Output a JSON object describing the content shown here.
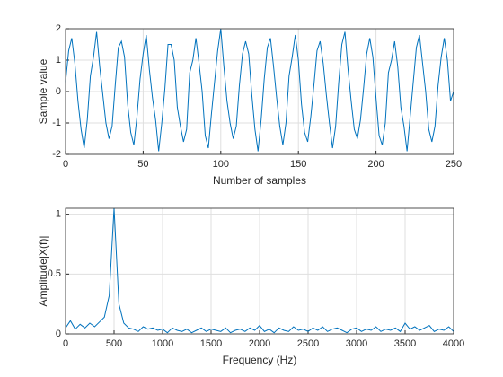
{
  "chart_data": [
    {
      "type": "line",
      "xlabel": "Number of samples",
      "ylabel": "Sample value",
      "xlim": [
        0,
        250
      ],
      "ylim": [
        -2,
        2
      ],
      "xticks": [
        0,
        50,
        100,
        150,
        200,
        250
      ],
      "yticks": [
        -2,
        -1,
        0,
        1,
        2
      ],
      "grid": true,
      "x": [
        0,
        2,
        4,
        6,
        8,
        10,
        12,
        14,
        16,
        18,
        20,
        22,
        24,
        26,
        28,
        30,
        32,
        34,
        36,
        38,
        40,
        42,
        44,
        46,
        48,
        50,
        52,
        54,
        56,
        58,
        60,
        62,
        64,
        66,
        68,
        70,
        72,
        74,
        76,
        78,
        80,
        82,
        84,
        86,
        88,
        90,
        92,
        94,
        96,
        98,
        100,
        102,
        104,
        106,
        108,
        110,
        112,
        114,
        116,
        118,
        120,
        122,
        124,
        126,
        128,
        130,
        132,
        134,
        136,
        138,
        140,
        142,
        144,
        146,
        148,
        150,
        152,
        154,
        156,
        158,
        160,
        162,
        164,
        166,
        168,
        170,
        172,
        174,
        176,
        178,
        180,
        182,
        184,
        186,
        188,
        190,
        192,
        194,
        196,
        198,
        200,
        202,
        204,
        206,
        208,
        210,
        212,
        214,
        216,
        218,
        220,
        222,
        224,
        226,
        228,
        230,
        232,
        234,
        236,
        238,
        240,
        242,
        244,
        246,
        248,
        250
      ],
      "series": [
        {
          "name": "signal",
          "color": "#0072bd",
          "values": [
            0.3,
            1.3,
            1.7,
            0.9,
            -0.3,
            -1.2,
            -1.8,
            -0.9,
            0.5,
            1.1,
            1.9,
            0.8,
            -0.1,
            -1.0,
            -1.5,
            -1.1,
            0.2,
            1.4,
            1.6,
            1.1,
            -0.4,
            -1.3,
            -1.7,
            -0.8,
            0.4,
            1.2,
            1.8,
            0.7,
            -0.2,
            -0.9,
            -1.9,
            -1.0,
            0.1,
            1.5,
            1.5,
            1.0,
            -0.5,
            -1.1,
            -1.6,
            -1.2,
            0.6,
            1.0,
            1.7,
            0.9,
            0.0,
            -1.4,
            -1.8,
            -0.7,
            0.3,
            1.3,
            2.0,
            0.8,
            -0.3,
            -1.0,
            -1.5,
            -1.1,
            0.2,
            1.2,
            1.6,
            1.2,
            -0.1,
            -1.2,
            -1.9,
            -0.9,
            0.4,
            1.4,
            1.7,
            0.8,
            -0.2,
            -1.1,
            -1.7,
            -1.0,
            0.5,
            1.1,
            1.8,
            1.0,
            -0.4,
            -1.3,
            -1.6,
            -0.8,
            0.2,
            1.3,
            1.6,
            0.9,
            -0.1,
            -1.0,
            -1.8,
            -1.1,
            0.3,
            1.5,
            1.9,
            0.7,
            -0.3,
            -1.2,
            -1.5,
            -0.9,
            0.1,
            1.2,
            1.7,
            1.1,
            -0.2,
            -1.4,
            -1.7,
            -1.0,
            0.6,
            1.0,
            1.6,
            0.8,
            -0.5,
            -1.1,
            -1.9,
            -0.8,
            0.3,
            1.4,
            1.8,
            0.9,
            0.0,
            -1.2,
            -1.6,
            -1.1,
            0.2,
            1.1,
            1.7,
            1.0,
            -0.3,
            0.0
          ]
        }
      ]
    },
    {
      "type": "line",
      "xlabel": "Frequency (Hz)",
      "ylabel": "Amplitude|X(f)|",
      "xlim": [
        0,
        4000
      ],
      "ylim": [
        0,
        1.05
      ],
      "xticks": [
        0,
        500,
        1000,
        1500,
        2000,
        2500,
        3000,
        3500,
        4000
      ],
      "yticks": [
        0,
        0.5,
        1
      ],
      "grid": true,
      "x": [
        0,
        50,
        100,
        150,
        200,
        250,
        300,
        350,
        400,
        450,
        500,
        550,
        600,
        650,
        700,
        750,
        800,
        850,
        900,
        950,
        1000,
        1050,
        1100,
        1150,
        1200,
        1250,
        1300,
        1350,
        1400,
        1450,
        1500,
        1550,
        1600,
        1650,
        1700,
        1750,
        1800,
        1850,
        1900,
        1950,
        2000,
        2050,
        2100,
        2150,
        2200,
        2250,
        2300,
        2350,
        2400,
        2450,
        2500,
        2550,
        2600,
        2650,
        2700,
        2750,
        2800,
        2850,
        2900,
        2950,
        3000,
        3050,
        3100,
        3150,
        3200,
        3250,
        3300,
        3350,
        3400,
        3450,
        3500,
        3550,
        3600,
        3650,
        3700,
        3750,
        3800,
        3850,
        3900,
        3950,
        4000
      ],
      "series": [
        {
          "name": "spectrum",
          "color": "#0072bd",
          "values": [
            0.05,
            0.11,
            0.04,
            0.08,
            0.05,
            0.09,
            0.06,
            0.1,
            0.14,
            0.32,
            1.05,
            0.25,
            0.09,
            0.05,
            0.04,
            0.02,
            0.06,
            0.04,
            0.05,
            0.03,
            0.04,
            0.01,
            0.05,
            0.03,
            0.02,
            0.04,
            0.01,
            0.03,
            0.05,
            0.02,
            0.04,
            0.03,
            0.02,
            0.05,
            0.01,
            0.03,
            0.04,
            0.02,
            0.05,
            0.03,
            0.07,
            0.02,
            0.04,
            0.01,
            0.05,
            0.03,
            0.02,
            0.06,
            0.03,
            0.04,
            0.02,
            0.05,
            0.03,
            0.06,
            0.02,
            0.04,
            0.05,
            0.03,
            0.01,
            0.04,
            0.05,
            0.02,
            0.04,
            0.03,
            0.06,
            0.02,
            0.04,
            0.03,
            0.05,
            0.02,
            0.09,
            0.04,
            0.06,
            0.03,
            0.05,
            0.07,
            0.02,
            0.04,
            0.03,
            0.06,
            0.02
          ]
        }
      ]
    }
  ]
}
